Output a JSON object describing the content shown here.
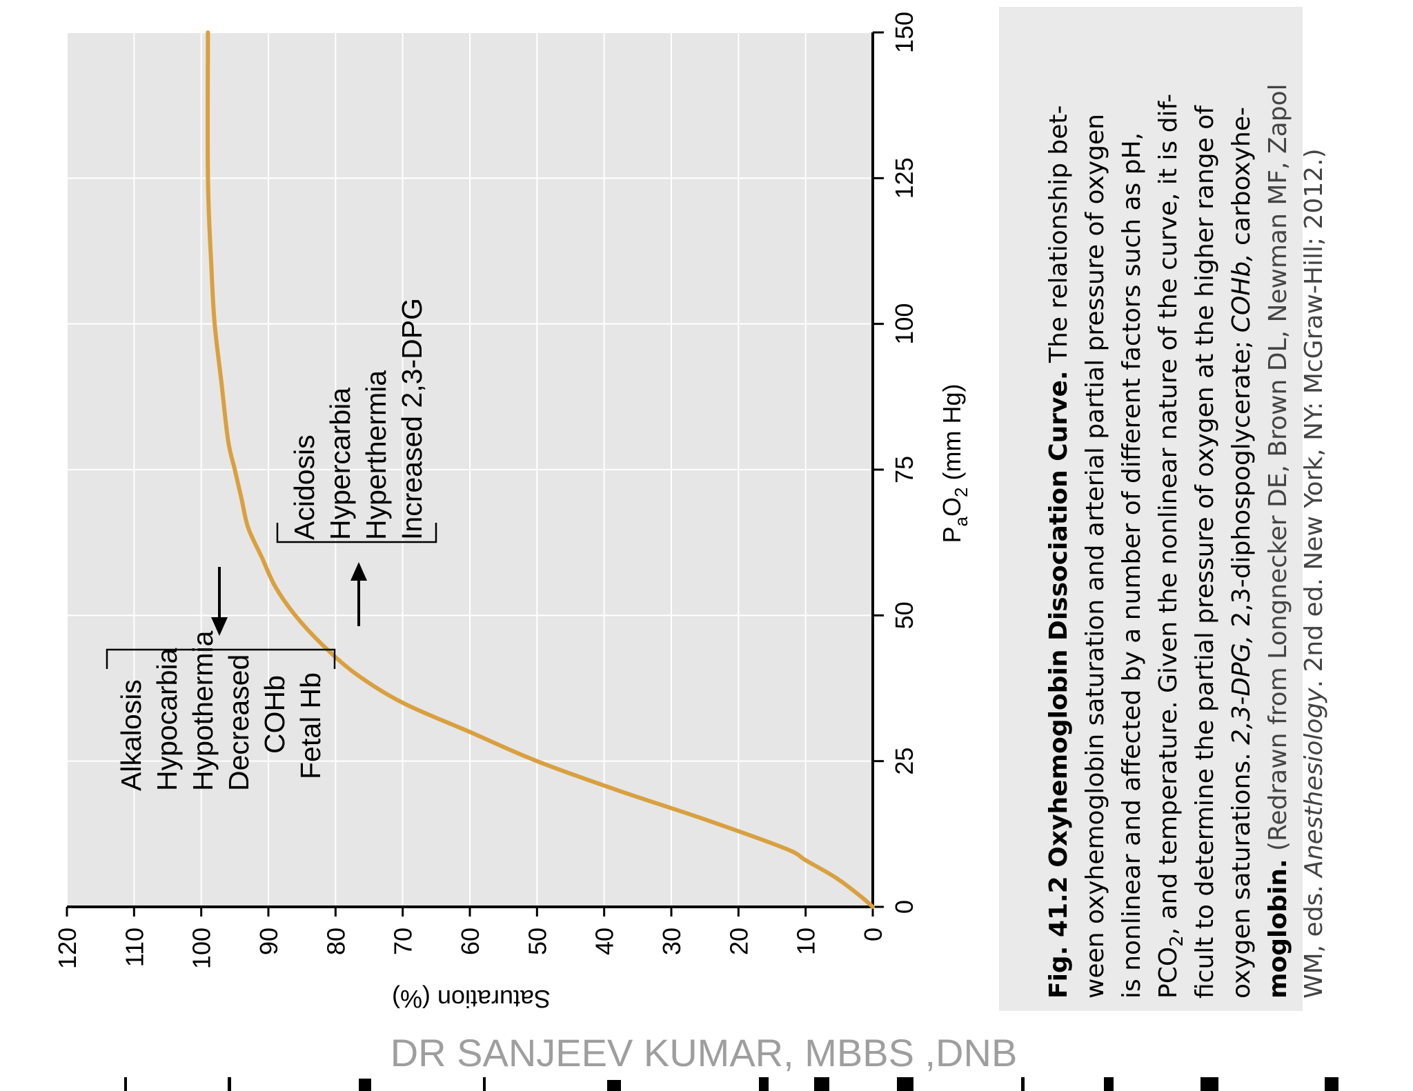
{
  "chart_data": {
    "type": "line",
    "orientation": "rotated-90-clockwise",
    "xlabel_prefix": "P",
    "xlabel_sub_a": "a",
    "xlabel_mid": "O",
    "xlabel_sub_2": "2",
    "xlabel_suffix": " (mm Hg)",
    "ylabel": "Saturation (%)",
    "xlim": [
      0,
      150
    ],
    "ylim": [
      0,
      120
    ],
    "x_ticks": [
      "0",
      "25",
      "50",
      "75",
      "100",
      "125",
      "150"
    ],
    "y_ticks": [
      "0",
      "10",
      "20",
      "30",
      "40",
      "50",
      "60",
      "70",
      "80",
      "90",
      "100",
      "110",
      "120"
    ],
    "grid": true,
    "series": [
      {
        "name": "Oxyhemoglobin dissociation curve",
        "color": "#D9A03F",
        "x": [
          0,
          2,
          5,
          8,
          10,
          15,
          20,
          25,
          30,
          35,
          40,
          45,
          50,
          55,
          60,
          65,
          70,
          75,
          80,
          90,
          100,
          110,
          125,
          150
        ],
        "y": [
          0,
          2,
          5.5,
          10,
          13,
          25,
          38,
          50,
          60,
          70,
          77,
          82,
          86,
          89,
          91,
          93,
          94,
          95,
          96,
          97,
          98,
          98.5,
          99,
          99
        ]
      }
    ],
    "annotations": {
      "left_shift": {
        "labels": [
          "Alkalosis",
          "Hypocarbia",
          "Hypothermia",
          "Decreased",
          "COHb",
          "Fetal Hb"
        ],
        "arrow_direction": "down"
      },
      "right_shift": {
        "labels": [
          "Acidosis",
          "Hypercarbia",
          "Hyperthermia",
          "Increased 2,3-DPG"
        ],
        "arrow_direction": "up"
      }
    }
  },
  "caption": {
    "line1_bold": "Fig. 41.2  Oxyhemoglobin Dissociation Curve.",
    "line1_rest": " The relationship bet-",
    "line2": "ween oxyhemoglobin saturation and arterial partial pressure of oxygen",
    "line3": "is nonlinear and affected by a number of different factors such as pH,",
    "line4_a": "PCO",
    "line4_sub": "2",
    "line4_b": ", and temperature. Given the nonlinear nature of the curve, it is dif-",
    "line5": "ficult to determine the partial pressure of oxygen at the higher range of",
    "line6_a": "oxygen saturations. ",
    "line6_i1": "2,3-DPG,",
    "line6_b": " 2,3-diphospoglycerate; ",
    "line6_i2": "COHb,",
    "line6_c": " carboxyhe-",
    "line7_bold": "moglobin.",
    "line7_rest": " (Redrawn from Longnecker DE, Brown DL, Newman MF, Zapol",
    "line8_a": "WM, eds. ",
    "line8_i": "Anesthesiology",
    "line8_b": ". 2nd ed. New York, NY: McGraw-Hill; 2012.)"
  },
  "watermark": "DR SANJEEV KUMAR, MBBS ,DNB",
  "colors": {
    "plot_bg": "#E6E6E6",
    "grid": "#FFFFFF",
    "curve": "#D9A03F",
    "axis": "#000000",
    "caption_bg": "#EAEAEA",
    "watermark": "#9E9E9E"
  }
}
